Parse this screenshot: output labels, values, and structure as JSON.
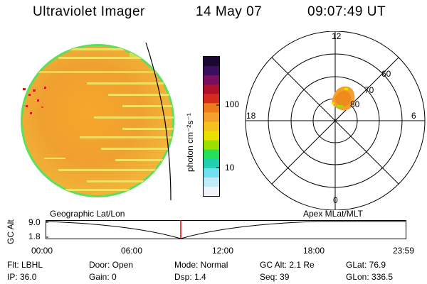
{
  "header": {
    "title": "Ultraviolet Imager",
    "date": "14 May 07",
    "time": "09:07:49 UT"
  },
  "colorbar": {
    "label": "photon cm⁻²s⁻¹",
    "tick_labels": [
      "100",
      "10"
    ],
    "colors": [
      "#1a0833",
      "#3a0f60",
      "#7a0f60",
      "#b0102b",
      "#d42b1c",
      "#ee7b1a",
      "#f5a02a",
      "#f3c21e",
      "#e8e000",
      "#9be000",
      "#27e05a",
      "#20d0b0",
      "#70e0f0",
      "#c0ecf8",
      "#f0f4f8"
    ]
  },
  "polar": {
    "mlt_labels": {
      "top": "12",
      "bottom": "0",
      "left": "18",
      "right": "6"
    },
    "lat_labels": [
      "60",
      "70",
      "80"
    ]
  },
  "timeline": {
    "left_label": "Geographic Lat/Lon",
    "right_label": "Apex MLat/MLT",
    "axis_label": "GC Alt",
    "y_ticks": [
      "9.0",
      "1.8"
    ],
    "x_ticks": [
      "00:00",
      "06:00",
      "12:00",
      "18:00",
      "23:59"
    ],
    "marker_color": "#e00000"
  },
  "info": {
    "flt": "Flt: LBHL",
    "ip": "IP: 36.0",
    "door": "Door: Open",
    "gain": "Gain:  0",
    "mode": "Mode: Normal",
    "dsp": "Dsp:     1.4",
    "gcalt": "GC Alt: 2.1 Re",
    "seq": "Seq: 39",
    "glat": "GLat:  76.9",
    "glon": "GLon: 336.5"
  }
}
